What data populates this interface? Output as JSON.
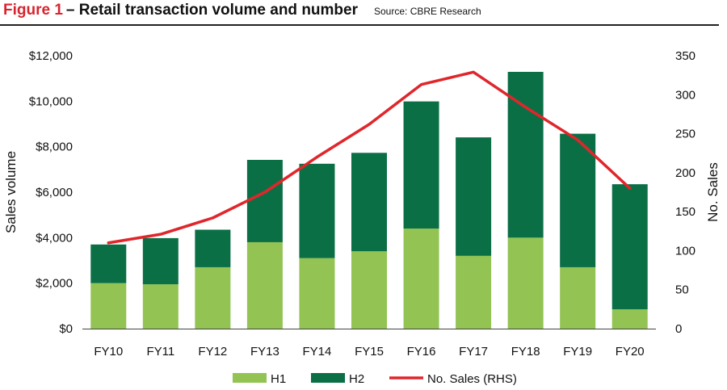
{
  "header": {
    "figure_label": "Figure 1",
    "title": "– Retail transaction volume and number",
    "source": "Source: CBRE Research"
  },
  "chart_data": {
    "type": "bar",
    "stacked": true,
    "categories": [
      "FY10",
      "FY11",
      "FY12",
      "FY13",
      "FY14",
      "FY15",
      "FY16",
      "FY17",
      "FY18",
      "FY19",
      "FY20"
    ],
    "series": [
      {
        "name": "H1",
        "axis": "left",
        "color": "#92c353",
        "values": [
          2000,
          1950,
          2700,
          3800,
          3100,
          3400,
          4400,
          3200,
          4000,
          2700,
          850
        ]
      },
      {
        "name": "H2",
        "axis": "left",
        "color": "#0b6f46",
        "values": [
          1700,
          2030,
          1650,
          3620,
          4150,
          4330,
          5590,
          5210,
          7290,
          5870,
          5500
        ]
      },
      {
        "name": "No. Sales (RHS)",
        "type": "line",
        "axis": "right",
        "color": "#e0262b",
        "values": [
          110,
          121,
          142,
          175,
          220,
          262,
          313,
          329,
          284,
          242,
          180
        ]
      }
    ],
    "ylabel": "Sales volume",
    "y2label": "No. Sales",
    "ylim": [
      0,
      12000
    ],
    "y2lim": [
      0,
      350
    ],
    "yticks": [
      "$0",
      "$2,000",
      "$4,000",
      "$6,000",
      "$8,000",
      "$10,000",
      "$12,000"
    ],
    "yticks_values": [
      0,
      2000,
      4000,
      6000,
      8000,
      10000,
      12000
    ],
    "y2ticks": [
      "0",
      "50",
      "100",
      "150",
      "200",
      "250",
      "300",
      "350"
    ],
    "y2ticks_values": [
      0,
      50,
      100,
      150,
      200,
      250,
      300,
      350
    ],
    "grid": false,
    "legend_position": "bottom"
  }
}
